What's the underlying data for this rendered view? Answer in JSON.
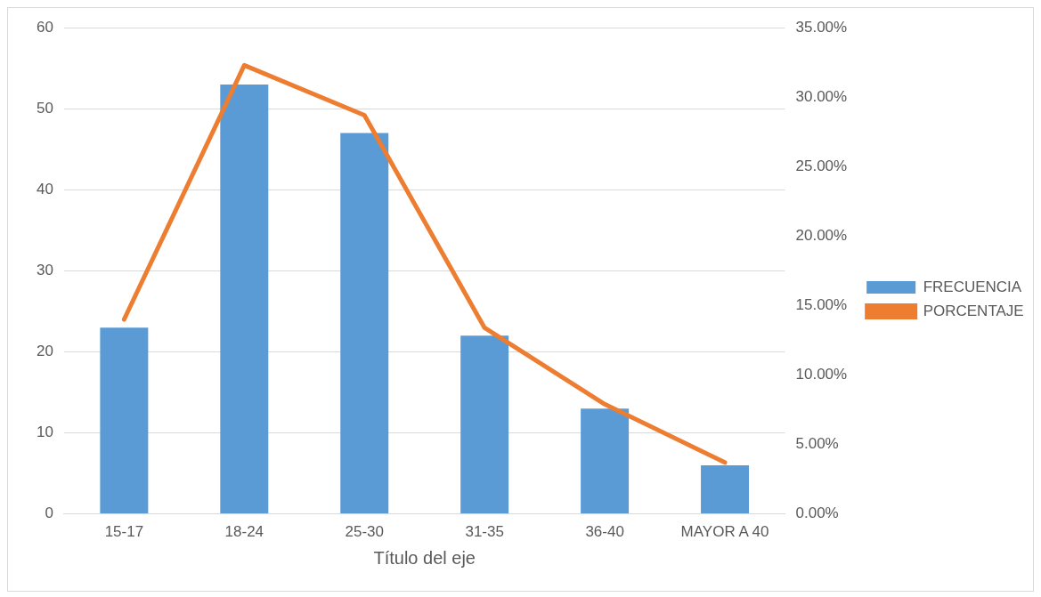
{
  "chart_data": {
    "type": "bar",
    "categories": [
      "15-17",
      "18-24",
      "25-30",
      "31-35",
      "36-40",
      "MAYOR A 40"
    ],
    "xlabel": "Título del eje",
    "series": [
      {
        "name": "FRECUENCIA",
        "color": "#5b9bd5",
        "values": [
          23,
          53,
          47,
          22,
          13,
          6
        ]
      },
      {
        "name": "PORCENTAJE",
        "type": "line",
        "axis": "y2",
        "color": "#ed7d31",
        "values": [
          14.0,
          32.3,
          28.7,
          13.4,
          7.9,
          3.7
        ]
      }
    ],
    "ylim": [
      0,
      60
    ],
    "yticks": [
      0,
      10,
      20,
      30,
      40,
      50,
      60
    ],
    "y2lim": [
      0,
      35
    ],
    "y2ticks": [
      {
        "value": 0,
        "label": "0.00%"
      },
      {
        "value": 5,
        "label": "5.00%"
      },
      {
        "value": 10,
        "label": "10.00%"
      },
      {
        "value": 15,
        "label": "15.00%"
      },
      {
        "value": 20,
        "label": "20.00%"
      },
      {
        "value": 25,
        "label": "25.00%"
      },
      {
        "value": 30,
        "label": "30.00%"
      },
      {
        "value": 35,
        "label": "35.00%"
      }
    ],
    "grid": "y",
    "legend": "right",
    "marker": "none",
    "line_style": "solid"
  }
}
